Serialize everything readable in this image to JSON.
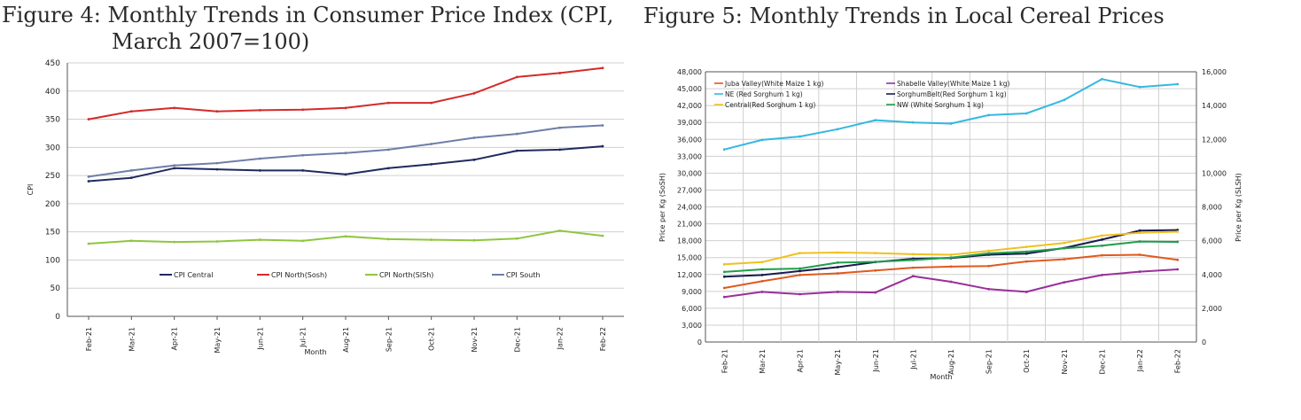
{
  "figure4": {
    "title_line1": "Figure 4: Monthly Trends in Consumer Price Index (CPI,",
    "title_line2": "March 2007=100)"
  },
  "figure5": {
    "title": "Figure 5: Monthly Trends in Local Cereal Prices"
  },
  "chart_data": [
    {
      "type": "line",
      "title": "Figure 4: Monthly Trends in Consumer Price Index (CPI, March 2007=100)",
      "xlabel": "Month",
      "ylabel": "CPI",
      "ylim": [
        0,
        450
      ],
      "yticks": [
        0,
        50,
        100,
        150,
        200,
        250,
        300,
        350,
        400,
        450
      ],
      "grid": true,
      "legend": "bottom-center",
      "categories": [
        "Feb-21",
        "Mar-21",
        "Apr-21",
        "May-21",
        "Jun-21",
        "Jul-21",
        "Aug-21",
        "Sep-21",
        "Oct-21",
        "Nov-21",
        "Dec-21",
        "Jan-22",
        "Feb-22"
      ],
      "series": [
        {
          "name": "CPI Central",
          "color": "#1f2a5e",
          "values": [
            240,
            246,
            263,
            261,
            259,
            259,
            252,
            263,
            270,
            278,
            294,
            296,
            302
          ]
        },
        {
          "name": "CPI North(Sosh)",
          "color": "#d42a2a",
          "values": [
            350,
            364,
            370,
            364,
            366,
            367,
            370,
            379,
            379,
            396,
            425,
            432,
            441
          ]
        },
        {
          "name": "CPI North(SlSh)",
          "color": "#8ec63f",
          "values": [
            129,
            134,
            132,
            133,
            136,
            134,
            142,
            137,
            136,
            135,
            138,
            152,
            143
          ]
        },
        {
          "name": "CPI South",
          "color": "#6e7ea6",
          "values": [
            248,
            259,
            268,
            272,
            280,
            286,
            290,
            296,
            306,
            317,
            324,
            335,
            339
          ]
        }
      ]
    },
    {
      "type": "line",
      "title": "Figure 5: Monthly Trends in Local Cereal Prices",
      "xlabel": "Month",
      "ylabel": "Price per Kg (SoSH)",
      "y2label": "Price per Kg (SLSH)",
      "ylim": [
        0,
        48000
      ],
      "y2lim": [
        0,
        16000
      ],
      "yticks": [
        "0",
        "3,000",
        "6,000",
        "9,000",
        "12,000",
        "15,000",
        "18,000",
        "21,000",
        "24,000",
        "27,000",
        "30,000",
        "33,000",
        "36,000",
        "39,000",
        "42,000",
        "45,000",
        "48,000"
      ],
      "y2ticks": [
        "0",
        "2,000",
        "4,000",
        "6,000",
        "8,000",
        "10,000",
        "12,000",
        "14,000",
        "16,000"
      ],
      "grid": true,
      "legend": "top-left",
      "categories": [
        "Feb-21",
        "Mar-21",
        "Apr-21",
        "May-21",
        "Jun-21",
        "Jul-21",
        "Aug-21",
        "Sep-21",
        "Oct-21",
        "Nov-21",
        "Dec-21",
        "Jan-22",
        "Feb-22"
      ],
      "series": [
        {
          "name": "Juba Valley(White Maize 1 kg)",
          "color": "#e05a1e",
          "axis": "left",
          "values": [
            9600,
            10800,
            11900,
            12200,
            12700,
            13200,
            13400,
            13500,
            14300,
            14700,
            15400,
            15500,
            14600
          ]
        },
        {
          "name": "Shabelle Valley(White Maize 1 kg)",
          "color": "#9a2f9a",
          "axis": "left",
          "values": [
            8000,
            8900,
            8500,
            8900,
            8800,
            11700,
            10700,
            9400,
            8900,
            10600,
            11900,
            12500,
            12900
          ]
        },
        {
          "name": "NE (Red Sorghum 1 kg)",
          "color": "#35b8e0",
          "axis": "left",
          "values": [
            34200,
            35900,
            36500,
            37800,
            39400,
            39000,
            38800,
            40300,
            40600,
            43000,
            46700,
            45300,
            45800
          ]
        },
        {
          "name": "SorghumBelt(Red Sorghum 1 kg)",
          "color": "#1a1a4e",
          "axis": "left",
          "values": [
            11600,
            11900,
            12600,
            13300,
            14200,
            14800,
            14900,
            15500,
            15700,
            16700,
            18200,
            19800,
            19900
          ]
        },
        {
          "name": "Central(Red Sorghum 1 kg)",
          "color": "#f0c020",
          "axis": "left",
          "values": [
            13800,
            14200,
            15800,
            15900,
            15800,
            15600,
            15500,
            16200,
            16900,
            17600,
            18900,
            19400,
            19600
          ]
        },
        {
          "name": "NW (White Sorghum 1 kg)",
          "color": "#1f9e4a",
          "axis": "right",
          "values": [
            4150,
            4300,
            4350,
            4700,
            4750,
            4850,
            5000,
            5250,
            5350,
            5550,
            5700,
            5950,
            5930
          ]
        }
      ]
    }
  ]
}
